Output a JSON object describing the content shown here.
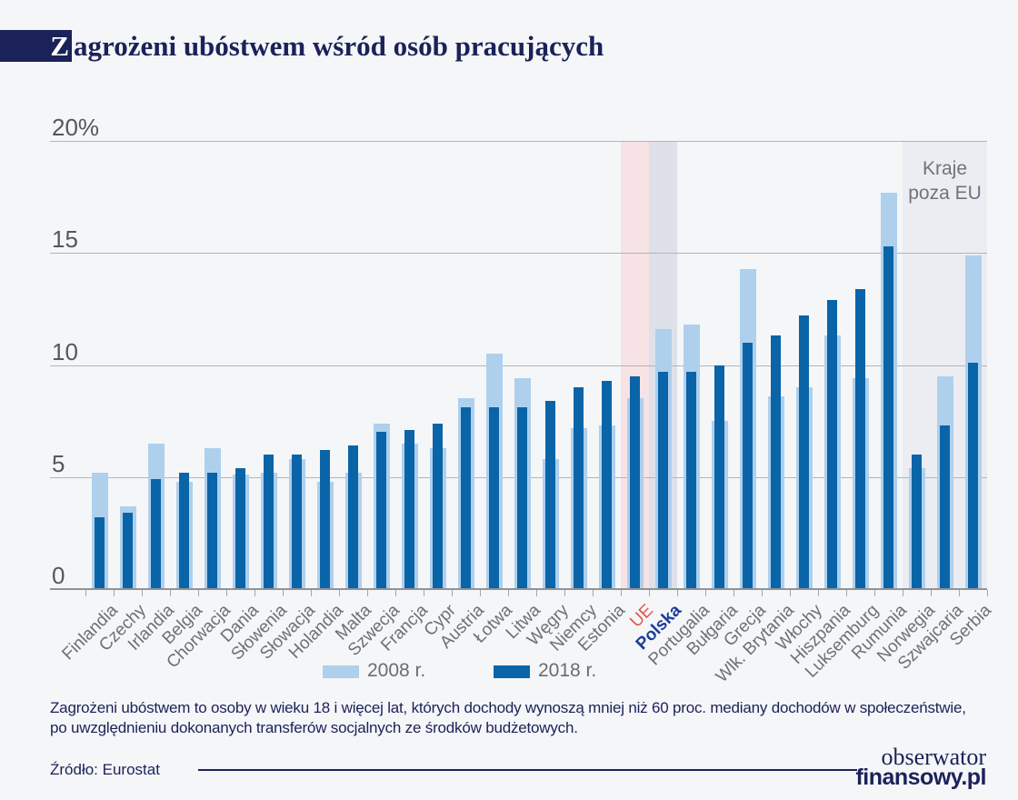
{
  "title": {
    "highlight_letter": "Z",
    "rest": "agrożeni ubóstwem wśród osób pracujących"
  },
  "chart_data": {
    "type": "bar",
    "title": "Zagrożeni ubóstwem wśród osób pracujących",
    "unit": "%",
    "ylim": [
      0,
      20
    ],
    "yticks": [
      0,
      5,
      10,
      15,
      20
    ],
    "ytick_labels": [
      "0",
      "5",
      "10",
      "15",
      "20%"
    ],
    "grid": "horizontal",
    "legend_position": "bottom",
    "categories": [
      "Finlandia",
      "Czechy",
      "Irlandia",
      "Belgia",
      "Chorwacja",
      "Dania",
      "Słowenia",
      "Słowacja",
      "Holandia",
      "Malta",
      "Szwecja",
      "Francja",
      "Cypr",
      "Austria",
      "Łotwa",
      "Litwa",
      "Węgry",
      "Niemcy",
      "Estonia",
      "UE",
      "Polska",
      "Portugalia",
      "Bułgaria",
      "Grecja",
      "Wlk. Brytania",
      "Włochy",
      "Hiszpania",
      "Luksemburg",
      "Rumunia",
      "Norwegia",
      "Szwajcaria",
      "Serbia"
    ],
    "series": [
      {
        "name": "2008 r.",
        "color": "#aed0ed",
        "values": [
          5.2,
          3.7,
          6.5,
          4.8,
          6.3,
          5.1,
          5.2,
          5.8,
          4.8,
          5.2,
          7.4,
          6.5,
          6.3,
          8.5,
          10.5,
          9.4,
          5.8,
          7.2,
          7.3,
          8.5,
          11.6,
          11.8,
          7.5,
          14.3,
          8.6,
          9.0,
          11.3,
          9.4,
          17.7,
          5.4,
          9.5,
          14.9
        ]
      },
      {
        "name": "2018 r.",
        "color": "#0a64a8",
        "values": [
          3.2,
          3.4,
          4.9,
          5.2,
          5.2,
          5.4,
          6.0,
          6.0,
          6.2,
          6.4,
          7.0,
          7.1,
          7.4,
          8.1,
          8.1,
          8.1,
          8.4,
          9.0,
          9.3,
          9.5,
          9.7,
          9.7,
          10.0,
          11.0,
          11.3,
          12.2,
          12.9,
          13.4,
          15.3,
          6.0,
          7.3,
          10.1
        ]
      }
    ],
    "bands": [
      {
        "name": "ue-band",
        "start_category": "UE",
        "end_category": "UE",
        "color": "#f7e3e5",
        "label": ""
      },
      {
        "name": "polska-band",
        "start_category": "Polska",
        "end_category": "Polska",
        "color": "#dee1ea",
        "label": ""
      },
      {
        "name": "non-eu-band",
        "start_category": "Norwegia",
        "end_category": "Serbia",
        "color": "#ebedf2",
        "label": "Kraje poza EU"
      }
    ],
    "category_label_colors": {
      "UE": "#e4564c",
      "Polska": "#1d3d99"
    },
    "category_label_bold": [
      "Polska"
    ],
    "axis_label_color": "#6f7072"
  },
  "legend": {
    "items": [
      {
        "label": "2008 r.",
        "color": "#aed0ed"
      },
      {
        "label": "2018 r.",
        "color": "#0a64a8"
      }
    ]
  },
  "footnote": {
    "line1": "Zagrożeni ubóstwem to osoby w wieku 18 i więcej lat, których dochody wynoszą mniej niż 60 proc. mediany dochodów w społeczeństwie,",
    "line2": "po uwzględnieniu dokonanych transferów socjalnych ze środków budżetowych."
  },
  "source": "Źródło: Eurostat",
  "logo": {
    "top": "obserwator",
    "bottom": "finansowy.pl"
  }
}
